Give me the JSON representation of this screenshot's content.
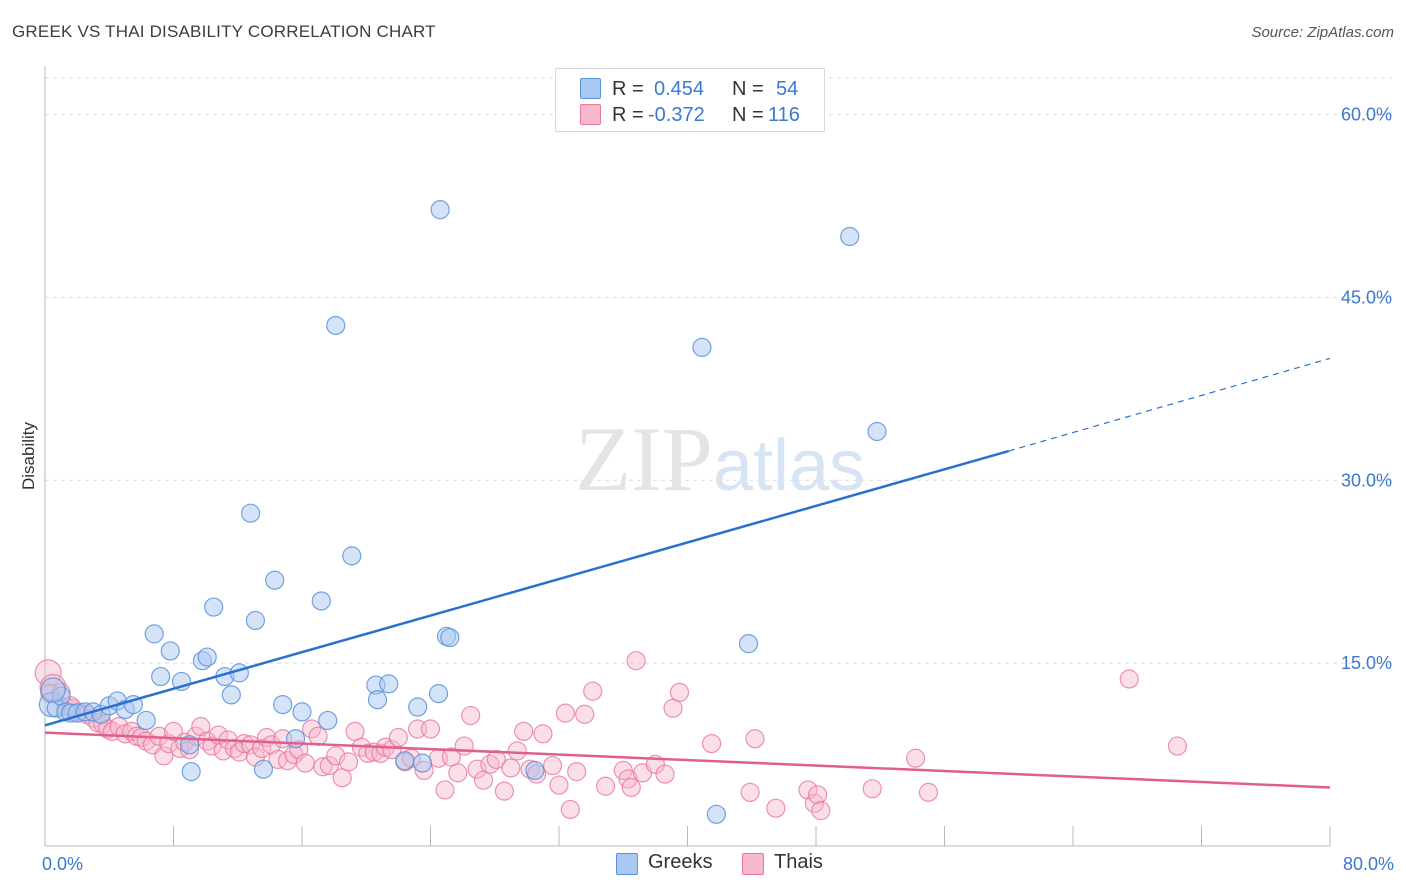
{
  "title": "GREEK VS THAI DISABILITY CORRELATION CHART",
  "source": "Source: ZipAtlas.com",
  "colors": {
    "greeks_fill": "#a9c8f2",
    "greeks_stroke": "#5a93d9",
    "greeks_line": "#2b6fd1",
    "thais_fill": "#f6b8cb",
    "thais_stroke": "#e8789c",
    "thais_line": "#e0608a",
    "axis_label": "#3a78d4",
    "grid": "#dcdcdc"
  },
  "legend": {
    "greeks": {
      "r_label": "R =",
      "r_value": "0.454",
      "n_label": "N =",
      "n_value": "54"
    },
    "thais": {
      "r_label": "R =",
      "r_value": "-0.372",
      "n_label": "N =",
      "n_value": "116"
    }
  },
  "bottom_legend": {
    "greeks": "Greeks",
    "thais": "Thais"
  },
  "chart_data": {
    "type": "scatter",
    "title": "GREEK VS THAI DISABILITY CORRELATION CHART",
    "xlabel": "",
    "ylabel": "Disability",
    "xlim": [
      0,
      80
    ],
    "ylim": [
      0,
      63
    ],
    "x_tick_labels": [
      "0.0%",
      "80.0%"
    ],
    "y_ticks": [
      15,
      30,
      45,
      60
    ],
    "y_tick_labels": [
      "15.0%",
      "30.0%",
      "45.0%",
      "60.0%"
    ],
    "grid": true,
    "legend_position": "top-center",
    "watermark": "ZIPatlas",
    "series": [
      {
        "name": "Greeks",
        "r": 0.454,
        "n": 54,
        "trend": {
          "x0": 0,
          "y0": 9.9,
          "x1": 60,
          "y1": 32.4,
          "dashed_to_x": 80,
          "dashed_to_y": 40.0
        },
        "points": [
          [
            0.4,
            11.6
          ],
          [
            0.7,
            11.3
          ],
          [
            1.0,
            12.3
          ],
          [
            1.3,
            11.0
          ],
          [
            1.6,
            10.9
          ],
          [
            2.0,
            10.9
          ],
          [
            2.5,
            11.0
          ],
          [
            3.0,
            11.0
          ],
          [
            3.5,
            10.8
          ],
          [
            4.0,
            11.5
          ],
          [
            4.5,
            11.9
          ],
          [
            5.0,
            11.2
          ],
          [
            5.5,
            11.6
          ],
          [
            6.3,
            10.3
          ],
          [
            6.8,
            17.4
          ],
          [
            7.2,
            13.9
          ],
          [
            7.8,
            16.0
          ],
          [
            8.5,
            13.5
          ],
          [
            9.0,
            8.3
          ],
          [
            9.1,
            6.1
          ],
          [
            9.8,
            15.2
          ],
          [
            10.1,
            15.5
          ],
          [
            10.5,
            19.6
          ],
          [
            11.2,
            13.9
          ],
          [
            11.6,
            12.4
          ],
          [
            12.1,
            14.2
          ],
          [
            12.8,
            27.3
          ],
          [
            13.1,
            18.5
          ],
          [
            13.6,
            6.3
          ],
          [
            14.3,
            21.8
          ],
          [
            14.8,
            11.6
          ],
          [
            15.6,
            8.8
          ],
          [
            16.0,
            11.0
          ],
          [
            17.2,
            20.1
          ],
          [
            17.6,
            10.3
          ],
          [
            18.1,
            42.7
          ],
          [
            19.1,
            23.8
          ],
          [
            20.6,
            13.2
          ],
          [
            20.7,
            12.0
          ],
          [
            21.4,
            13.3
          ],
          [
            22.4,
            7.0
          ],
          [
            23.2,
            11.4
          ],
          [
            23.5,
            6.8
          ],
          [
            24.5,
            12.5
          ],
          [
            25.0,
            17.2
          ],
          [
            25.2,
            17.1
          ],
          [
            24.6,
            52.2
          ],
          [
            30.5,
            6.2
          ],
          [
            40.9,
            40.9
          ],
          [
            41.8,
            2.6
          ],
          [
            43.8,
            16.6
          ],
          [
            50.1,
            50.0
          ],
          [
            51.8,
            34.0
          ],
          [
            0.5,
            12.8
          ]
        ]
      },
      {
        "name": "Thais",
        "r": -0.372,
        "n": 116,
        "trend": {
          "x0": 0,
          "y0": 9.3,
          "x1": 80,
          "y1": 4.8
        },
        "points": [
          [
            0.2,
            14.2
          ],
          [
            0.5,
            13.0
          ],
          [
            1.0,
            12.6
          ],
          [
            1.3,
            11.4
          ],
          [
            1.7,
            11.3
          ],
          [
            2.1,
            11.0
          ],
          [
            2.6,
            10.8
          ],
          [
            3.0,
            10.5
          ],
          [
            3.3,
            10.1
          ],
          [
            3.6,
            10.0
          ],
          [
            3.9,
            9.6
          ],
          [
            4.2,
            9.4
          ],
          [
            4.6,
            9.8
          ],
          [
            5.0,
            9.2
          ],
          [
            5.4,
            9.4
          ],
          [
            5.7,
            9.0
          ],
          [
            6.0,
            8.9
          ],
          [
            6.3,
            8.6
          ],
          [
            6.7,
            8.3
          ],
          [
            7.1,
            9.0
          ],
          [
            7.4,
            7.4
          ],
          [
            7.7,
            8.4
          ],
          [
            8.0,
            9.4
          ],
          [
            8.4,
            8.0
          ],
          [
            8.7,
            8.5
          ],
          [
            9.0,
            7.9
          ],
          [
            9.4,
            9.0
          ],
          [
            9.7,
            9.8
          ],
          [
            10.1,
            8.6
          ],
          [
            10.4,
            8.2
          ],
          [
            10.8,
            9.1
          ],
          [
            11.1,
            7.8
          ],
          [
            11.4,
            8.7
          ],
          [
            11.8,
            8.0
          ],
          [
            12.1,
            7.7
          ],
          [
            12.4,
            8.4
          ],
          [
            12.8,
            8.3
          ],
          [
            13.1,
            7.3
          ],
          [
            13.5,
            8.0
          ],
          [
            13.8,
            8.9
          ],
          [
            14.1,
            8.3
          ],
          [
            14.5,
            7.1
          ],
          [
            14.8,
            8.8
          ],
          [
            15.1,
            7.0
          ],
          [
            15.5,
            7.5
          ],
          [
            15.8,
            7.9
          ],
          [
            16.2,
            6.8
          ],
          [
            16.6,
            9.6
          ],
          [
            17.0,
            9.0
          ],
          [
            17.3,
            6.5
          ],
          [
            17.7,
            6.6
          ],
          [
            18.1,
            7.4
          ],
          [
            18.5,
            5.6
          ],
          [
            18.9,
            6.9
          ],
          [
            19.3,
            9.4
          ],
          [
            19.7,
            8.1
          ],
          [
            20.1,
            7.6
          ],
          [
            20.5,
            7.7
          ],
          [
            20.9,
            7.6
          ],
          [
            21.2,
            8.1
          ],
          [
            21.6,
            7.9
          ],
          [
            22.0,
            8.9
          ],
          [
            22.4,
            6.9
          ],
          [
            22.8,
            7.2
          ],
          [
            23.2,
            9.6
          ],
          [
            23.6,
            6.2
          ],
          [
            24.0,
            9.6
          ],
          [
            24.5,
            7.2
          ],
          [
            24.9,
            4.6
          ],
          [
            25.3,
            7.3
          ],
          [
            25.7,
            6.0
          ],
          [
            26.1,
            8.2
          ],
          [
            26.5,
            10.7
          ],
          [
            26.9,
            6.3
          ],
          [
            27.3,
            5.4
          ],
          [
            27.7,
            6.7
          ],
          [
            28.1,
            7.1
          ],
          [
            28.6,
            4.5
          ],
          [
            29.0,
            6.4
          ],
          [
            29.4,
            7.8
          ],
          [
            29.8,
            9.4
          ],
          [
            30.2,
            6.3
          ],
          [
            30.6,
            5.9
          ],
          [
            31.0,
            9.2
          ],
          [
            31.6,
            6.6
          ],
          [
            32.0,
            5.0
          ],
          [
            32.4,
            10.9
          ],
          [
            32.7,
            3.0
          ],
          [
            33.1,
            6.1
          ],
          [
            33.6,
            10.8
          ],
          [
            34.1,
            12.7
          ],
          [
            34.9,
            4.9
          ],
          [
            36.0,
            6.2
          ],
          [
            36.3,
            5.5
          ],
          [
            36.5,
            4.8
          ],
          [
            36.8,
            15.2
          ],
          [
            37.2,
            6.0
          ],
          [
            38.0,
            6.7
          ],
          [
            38.6,
            5.9
          ],
          [
            39.1,
            11.3
          ],
          [
            39.5,
            12.6
          ],
          [
            41.5,
            8.4
          ],
          [
            43.9,
            4.4
          ],
          [
            44.2,
            8.8
          ],
          [
            45.5,
            3.1
          ],
          [
            47.5,
            4.6
          ],
          [
            47.9,
            3.5
          ],
          [
            48.1,
            4.2
          ],
          [
            48.3,
            2.9
          ],
          [
            51.5,
            4.7
          ],
          [
            54.2,
            7.2
          ],
          [
            55.0,
            4.4
          ],
          [
            67.5,
            13.7
          ],
          [
            70.5,
            8.2
          ],
          [
            0.3,
            12.5
          ],
          [
            1.6,
            11.5
          ]
        ]
      }
    ]
  }
}
